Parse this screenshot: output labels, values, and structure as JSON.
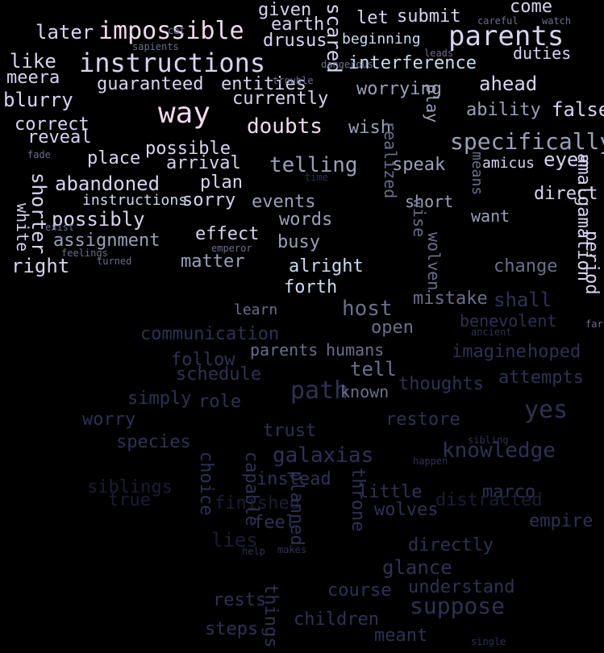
{
  "palette": {
    "background": "#000000",
    "bright_pink": "#f2d7ee",
    "pale_lavender": "#d9d2f0",
    "light_blue": "#c8dcef",
    "mid_gray": "#9aa0b8",
    "slate": "#6a6f8c",
    "deep_blue": "#2e3154",
    "very_dark": "#1b1d33"
  },
  "words": [
    {
      "text": "impossible",
      "tone": "bright_pink",
      "weight": 5,
      "rotation": 0
    },
    {
      "text": "instructions",
      "tone": "pale_lavender",
      "weight": 5,
      "rotation": 0
    },
    {
      "text": "parents",
      "tone": "pale_lavender",
      "weight": 5,
      "rotation": 0
    },
    {
      "text": "way",
      "tone": "bright_pink",
      "weight": 5,
      "rotation": 0
    },
    {
      "text": "given",
      "tone": "pale_lavender",
      "weight": 3,
      "rotation": 0
    },
    {
      "text": "later",
      "tone": "pale_lavender",
      "weight": 3,
      "rotation": 0
    },
    {
      "text": "drusus",
      "tone": "pale_lavender",
      "weight": 3,
      "rotation": 0
    },
    {
      "text": "earth",
      "tone": "pale_lavender",
      "weight": 3,
      "rotation": 0
    },
    {
      "text": "scared",
      "tone": "pale_lavender",
      "weight": 3,
      "rotation": 90
    },
    {
      "text": "submit",
      "tone": "pale_lavender",
      "weight": 3,
      "rotation": 0
    },
    {
      "text": "let",
      "tone": "pale_lavender",
      "weight": 3,
      "rotation": 0
    },
    {
      "text": "come",
      "tone": "pale_lavender",
      "weight": 3,
      "rotation": 0
    },
    {
      "text": "beginning",
      "tone": "light_blue",
      "weight": 2,
      "rotation": 0
    },
    {
      "text": "duties",
      "tone": "pale_lavender",
      "weight": 3,
      "rotation": 0
    },
    {
      "text": "interference",
      "tone": "light_blue",
      "weight": 3,
      "rotation": 0
    },
    {
      "text": "like",
      "tone": "pale_lavender",
      "weight": 3,
      "rotation": 0
    },
    {
      "text": "meera",
      "tone": "pale_lavender",
      "weight": 3,
      "rotation": 0
    },
    {
      "text": "guaranteed",
      "tone": "pale_lavender",
      "weight": 3,
      "rotation": 0
    },
    {
      "text": "entities",
      "tone": "pale_lavender",
      "weight": 3,
      "rotation": 0
    },
    {
      "text": "worrying",
      "tone": "mid_gray",
      "weight": 3,
      "rotation": 0
    },
    {
      "text": "ahead",
      "tone": "pale_lavender",
      "weight": 3,
      "rotation": 0
    },
    {
      "text": "blurry",
      "tone": "pale_lavender",
      "weight": 3,
      "rotation": 0
    },
    {
      "text": "currently",
      "tone": "pale_lavender",
      "weight": 3,
      "rotation": 0
    },
    {
      "text": "ability",
      "tone": "mid_gray",
      "weight": 3,
      "rotation": 0
    },
    {
      "text": "false",
      "tone": "pale_lavender",
      "weight": 4,
      "rotation": 0
    },
    {
      "text": "correct",
      "tone": "pale_lavender",
      "weight": 3,
      "rotation": 0
    },
    {
      "text": "doubts",
      "tone": "bright_pink",
      "weight": 4,
      "rotation": 0
    },
    {
      "text": "wish",
      "tone": "mid_gray",
      "weight": 3,
      "rotation": 0
    },
    {
      "text": "play",
      "tone": "mid_gray",
      "weight": 3,
      "rotation": 90
    },
    {
      "text": "reveal",
      "tone": "pale_lavender",
      "weight": 3,
      "rotation": 0
    },
    {
      "text": "possible",
      "tone": "pale_lavender",
      "weight": 3,
      "rotation": 0
    },
    {
      "text": "specifically",
      "tone": "mid_gray",
      "weight": 4,
      "rotation": 0
    },
    {
      "text": "place",
      "tone": "pale_lavender",
      "weight": 3,
      "rotation": 0
    },
    {
      "text": "arrival",
      "tone": "pale_lavender",
      "weight": 3,
      "rotation": 0
    },
    {
      "text": "telling",
      "tone": "mid_gray",
      "weight": 4,
      "rotation": 0
    },
    {
      "text": "amicus",
      "tone": "pale_lavender",
      "weight": 2,
      "rotation": 0
    },
    {
      "text": "eyes",
      "tone": "pale_lavender",
      "weight": 3,
      "rotation": 0
    },
    {
      "text": "abandoned",
      "tone": "pale_lavender",
      "weight": 3,
      "rotation": 0
    },
    {
      "text": "speak",
      "tone": "mid_gray",
      "weight": 3,
      "rotation": 0
    },
    {
      "text": "means",
      "tone": "slate",
      "weight": 3,
      "rotation": 90
    },
    {
      "text": "shorter",
      "tone": "pale_lavender",
      "weight": 3,
      "rotation": 90
    },
    {
      "text": "instructions",
      "tone": "light_blue",
      "weight": 2,
      "rotation": 0
    },
    {
      "text": "sorry",
      "tone": "pale_lavender",
      "weight": 3,
      "rotation": 0
    },
    {
      "text": "plan",
      "tone": "pale_lavender",
      "weight": 3,
      "rotation": 0
    },
    {
      "text": "events",
      "tone": "mid_gray",
      "weight": 3,
      "rotation": 0
    },
    {
      "text": "realized",
      "tone": "slate",
      "weight": 3,
      "rotation": 90
    },
    {
      "text": "short",
      "tone": "mid_gray",
      "weight": 3,
      "rotation": 0
    },
    {
      "text": "direct",
      "tone": "pale_lavender",
      "weight": 3,
      "rotation": 0
    },
    {
      "text": "white",
      "tone": "pale_lavender",
      "weight": 3,
      "rotation": 90
    },
    {
      "text": "right",
      "tone": "pale_lavender",
      "weight": 3,
      "rotation": 0
    },
    {
      "text": "possibly",
      "tone": "pale_lavender",
      "weight": 3,
      "rotation": 0
    },
    {
      "text": "words",
      "tone": "mid_gray",
      "weight": 3,
      "rotation": 0
    },
    {
      "text": "wise",
      "tone": "slate",
      "weight": 3,
      "rotation": 90
    },
    {
      "text": "want",
      "tone": "mid_gray",
      "weight": 3,
      "rotation": 0
    },
    {
      "text": "amalgamation",
      "tone": "pale_lavender",
      "weight": 3,
      "rotation": 90
    },
    {
      "text": "effect",
      "tone": "pale_lavender",
      "weight": 3,
      "rotation": 0
    },
    {
      "text": "assignment",
      "tone": "mid_gray",
      "weight": 3,
      "rotation": 0
    },
    {
      "text": "busy",
      "tone": "mid_gray",
      "weight": 3,
      "rotation": 0
    },
    {
      "text": "wolven",
      "tone": "slate",
      "weight": 3,
      "rotation": 90
    },
    {
      "text": "matter",
      "tone": "mid_gray",
      "weight": 3,
      "rotation": 0
    },
    {
      "text": "change",
      "tone": "slate",
      "weight": 3,
      "rotation": 0
    },
    {
      "text": "alright",
      "tone": "light_blue",
      "weight": 3,
      "rotation": 0
    },
    {
      "text": "forth",
      "tone": "light_blue",
      "weight": 3,
      "rotation": 0
    },
    {
      "text": "period",
      "tone": "pale_lavender",
      "weight": 3,
      "rotation": 90
    },
    {
      "text": "host",
      "tone": "slate",
      "weight": 3,
      "rotation": 0
    },
    {
      "text": "mistake",
      "tone": "slate",
      "weight": 3,
      "rotation": 0
    },
    {
      "text": "shall",
      "tone": "deep_blue",
      "weight": 3,
      "rotation": 0
    },
    {
      "text": "learn",
      "tone": "slate",
      "weight": 2,
      "rotation": 0
    },
    {
      "text": "open",
      "tone": "slate",
      "weight": 3,
      "rotation": 0
    },
    {
      "text": "benevolent",
      "tone": "deep_blue",
      "weight": 3,
      "rotation": 0
    },
    {
      "text": "communication",
      "tone": "deep_blue",
      "weight": 3,
      "rotation": 0
    },
    {
      "text": "parents",
      "tone": "slate",
      "weight": 2,
      "rotation": 0
    },
    {
      "text": "humans",
      "tone": "slate",
      "weight": 2,
      "rotation": 0
    },
    {
      "text": "tell",
      "tone": "slate",
      "weight": 3,
      "rotation": 0
    },
    {
      "text": "imagine",
      "tone": "deep_blue",
      "weight": 3,
      "rotation": 0
    },
    {
      "text": "hoped",
      "tone": "deep_blue",
      "weight": 3,
      "rotation": 0
    },
    {
      "text": "follow",
      "tone": "deep_blue",
      "weight": 3,
      "rotation": 0
    },
    {
      "text": "schedule",
      "tone": "deep_blue",
      "weight": 3,
      "rotation": 0
    },
    {
      "text": "path",
      "tone": "deep_blue",
      "weight": 4,
      "rotation": 0
    },
    {
      "text": "known",
      "tone": "slate",
      "weight": 3,
      "rotation": 0
    },
    {
      "text": "thoughts",
      "tone": "deep_blue",
      "weight": 3,
      "rotation": 0
    },
    {
      "text": "attempts",
      "tone": "deep_blue",
      "weight": 3,
      "rotation": 0
    },
    {
      "text": "simply",
      "tone": "deep_blue",
      "weight": 3,
      "rotation": 0
    },
    {
      "text": "role",
      "tone": "deep_blue",
      "weight": 3,
      "rotation": 0
    },
    {
      "text": "yes",
      "tone": "deep_blue",
      "weight": 4,
      "rotation": 0
    },
    {
      "text": "worry",
      "tone": "deep_blue",
      "weight": 3,
      "rotation": 0
    },
    {
      "text": "trust",
      "tone": "deep_blue",
      "weight": 3,
      "rotation": 0
    },
    {
      "text": "restore",
      "tone": "deep_blue",
      "weight": 3,
      "rotation": 0
    },
    {
      "text": "capable",
      "tone": "deep_blue",
      "weight": 3,
      "rotation": 90
    },
    {
      "text": "species",
      "tone": "deep_blue",
      "weight": 3,
      "rotation": 0
    },
    {
      "text": "choice",
      "tone": "deep_blue",
      "weight": 3,
      "rotation": 90
    },
    {
      "text": "galaxias",
      "tone": "deep_blue",
      "weight": 3,
      "rotation": 0
    },
    {
      "text": "knowledge",
      "tone": "deep_blue",
      "weight": 3,
      "rotation": 0
    },
    {
      "text": "siblings",
      "tone": "very_dark",
      "weight": 3,
      "rotation": 0
    },
    {
      "text": "instead",
      "tone": "deep_blue",
      "weight": 3,
      "rotation": 0
    },
    {
      "text": "marco",
      "tone": "deep_blue",
      "weight": 3,
      "rotation": 0
    },
    {
      "text": "little",
      "tone": "deep_blue",
      "weight": 3,
      "rotation": 0
    },
    {
      "text": "true",
      "tone": "very_dark",
      "weight": 3,
      "rotation": 0
    },
    {
      "text": "finished",
      "tone": "very_dark",
      "weight": 3,
      "rotation": 0
    },
    {
      "text": "distracted",
      "tone": "very_dark",
      "weight": 3,
      "rotation": 0
    },
    {
      "text": "wolves",
      "tone": "deep_blue",
      "weight": 3,
      "rotation": 0
    },
    {
      "text": "feel",
      "tone": "deep_blue",
      "weight": 3,
      "rotation": 0
    },
    {
      "text": "empire",
      "tone": "deep_blue",
      "weight": 3,
      "rotation": 0
    },
    {
      "text": "lies",
      "tone": "very_dark",
      "weight": 3,
      "rotation": 0
    },
    {
      "text": "planned",
      "tone": "deep_blue",
      "weight": 3,
      "rotation": 90
    },
    {
      "text": "throne",
      "tone": "deep_blue",
      "weight": 3,
      "rotation": 90
    },
    {
      "text": "directly",
      "tone": "deep_blue",
      "weight": 3,
      "rotation": 0
    },
    {
      "text": "glance",
      "tone": "deep_blue",
      "weight": 3,
      "rotation": 0
    },
    {
      "text": "course",
      "tone": "deep_blue",
      "weight": 3,
      "rotation": 0
    },
    {
      "text": "understand",
      "tone": "deep_blue",
      "weight": 3,
      "rotation": 0
    },
    {
      "text": "things",
      "tone": "deep_blue",
      "weight": 3,
      "rotation": 90
    },
    {
      "text": "rests",
      "tone": "deep_blue",
      "weight": 3,
      "rotation": 0
    },
    {
      "text": "suppose",
      "tone": "deep_blue",
      "weight": 4,
      "rotation": 0
    },
    {
      "text": "children",
      "tone": "deep_blue",
      "weight": 3,
      "rotation": 0
    },
    {
      "text": "steps",
      "tone": "deep_blue",
      "weight": 3,
      "rotation": 0
    },
    {
      "text": "meant",
      "tone": "deep_blue",
      "weight": 3,
      "rotation": 0
    },
    {
      "text": "time",
      "tone": "deep_blue",
      "weight": 2,
      "rotation": 0
    },
    {
      "text": "cat",
      "tone": "slate",
      "weight": 1,
      "rotation": 0
    },
    {
      "text": "careful",
      "tone": "slate",
      "weight": 1,
      "rotation": 0
    },
    {
      "text": "watch",
      "tone": "slate",
      "weight": 1,
      "rotation": 0
    },
    {
      "text": "leads",
      "tone": "slate",
      "weight": 1,
      "rotation": 0
    },
    {
      "text": "emperor",
      "tone": "slate",
      "weight": 1,
      "rotation": 0
    },
    {
      "text": "sapients",
      "tone": "slate",
      "weight": 1,
      "rotation": 0
    },
    {
      "text": "fade",
      "tone": "slate",
      "weight": 1,
      "rotation": 0
    },
    {
      "text": "ancient",
      "tone": "deep_blue",
      "weight": 1,
      "rotation": 0
    },
    {
      "text": "trouble",
      "tone": "slate",
      "weight": 1,
      "rotation": 0
    },
    {
      "text": "dangerous",
      "tone": "slate",
      "weight": 1,
      "rotation": 0
    },
    {
      "text": "exist",
      "tone": "slate",
      "weight": 1,
      "rotation": 0
    },
    {
      "text": "turned",
      "tone": "slate",
      "weight": 1,
      "rotation": 0
    },
    {
      "text": "feelings",
      "tone": "slate",
      "weight": 1,
      "rotation": 0
    },
    {
      "text": "happen",
      "tone": "deep_blue",
      "weight": 1,
      "rotation": 0
    },
    {
      "text": "single",
      "tone": "deep_blue",
      "weight": 1,
      "rotation": 0
    },
    {
      "text": "help",
      "tone": "deep_blue",
      "weight": 1,
      "rotation": 0
    },
    {
      "text": "makes",
      "tone": "deep_blue",
      "weight": 1,
      "rotation": 0
    },
    {
      "text": "far",
      "tone": "slate",
      "weight": 1,
      "rotation": 0
    },
    {
      "text": "sibling",
      "tone": "deep_blue",
      "weight": 1,
      "rotation": 0
    }
  ]
}
